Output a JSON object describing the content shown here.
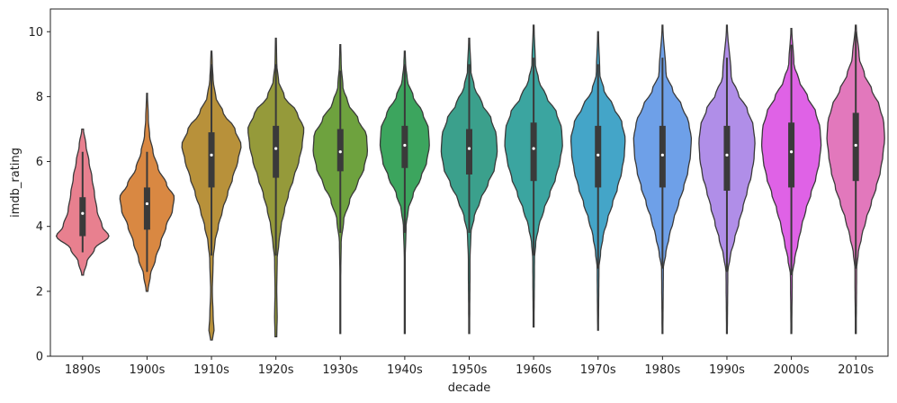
{
  "chart_data": {
    "type": "violin",
    "xlabel": "decade",
    "ylabel": "imdb_rating",
    "ylim": [
      0,
      10.7
    ],
    "yticks": [
      "0",
      "2",
      "4",
      "6",
      "8",
      "10"
    ],
    "grid": false,
    "legend": "none",
    "categories": [
      "1890s",
      "1900s",
      "1910s",
      "1920s",
      "1930s",
      "1940s",
      "1950s",
      "1960s",
      "1970s",
      "1980s",
      "1990s",
      "2000s",
      "2010s"
    ],
    "series": [
      {
        "category": "1890s",
        "color": "#e8808f",
        "min": 2.5,
        "max": 7.0,
        "q1": 3.7,
        "median": 4.4,
        "q3": 4.9,
        "whisker_low": 3.2,
        "whisker_high": 6.3,
        "density": [
          [
            2.5,
            0.02
          ],
          [
            2.9,
            0.1
          ],
          [
            3.3,
            0.28
          ],
          [
            3.7,
            0.62
          ],
          [
            4.0,
            0.46
          ],
          [
            4.5,
            0.34
          ],
          [
            5.0,
            0.28
          ],
          [
            5.5,
            0.22
          ],
          [
            6.0,
            0.15
          ],
          [
            6.5,
            0.08
          ],
          [
            7.0,
            0.02
          ]
        ]
      },
      {
        "category": "1900s",
        "color": "#d98842",
        "min": 2.0,
        "max": 8.1,
        "q1": 3.9,
        "median": 4.7,
        "q3": 5.2,
        "whisker_low": 2.6,
        "whisker_high": 6.3,
        "density": [
          [
            2.0,
            0.02
          ],
          [
            2.5,
            0.08
          ],
          [
            3.0,
            0.2
          ],
          [
            3.5,
            0.32
          ],
          [
            4.0,
            0.45
          ],
          [
            4.5,
            0.6
          ],
          [
            4.9,
            0.64
          ],
          [
            5.3,
            0.46
          ],
          [
            5.8,
            0.26
          ],
          [
            6.3,
            0.14
          ],
          [
            6.8,
            0.06
          ],
          [
            7.3,
            0.03
          ],
          [
            8.1,
            0.01
          ]
        ]
      },
      {
        "category": "1910s",
        "color": "#b8913a",
        "min": 0.5,
        "max": 9.4,
        "q1": 5.2,
        "median": 6.2,
        "q3": 6.9,
        "whisker_low": 3.1,
        "whisker_high": 9.0,
        "density": [
          [
            0.5,
            0.02
          ],
          [
            0.8,
            0.06
          ],
          [
            1.2,
            0.04
          ],
          [
            2.0,
            0.02
          ],
          [
            3.0,
            0.04
          ],
          [
            3.5,
            0.08
          ],
          [
            4.0,
            0.16
          ],
          [
            4.5,
            0.26
          ],
          [
            5.0,
            0.38
          ],
          [
            5.5,
            0.5
          ],
          [
            6.0,
            0.62
          ],
          [
            6.5,
            0.7
          ],
          [
            7.0,
            0.55
          ],
          [
            7.5,
            0.28
          ],
          [
            8.0,
            0.1
          ],
          [
            8.5,
            0.04
          ],
          [
            9.0,
            0.02
          ],
          [
            9.4,
            0.01
          ]
        ]
      },
      {
        "category": "1920s",
        "color": "#959a3a",
        "min": 0.6,
        "max": 9.8,
        "q1": 5.5,
        "median": 6.4,
        "q3": 7.1,
        "whisker_low": 3.1,
        "whisker_high": 9.0,
        "density": [
          [
            0.6,
            0.02
          ],
          [
            1.2,
            0.03
          ],
          [
            2.0,
            0.02
          ],
          [
            3.0,
            0.03
          ],
          [
            3.5,
            0.07
          ],
          [
            4.0,
            0.12
          ],
          [
            4.5,
            0.2
          ],
          [
            5.0,
            0.3
          ],
          [
            5.5,
            0.42
          ],
          [
            6.0,
            0.54
          ],
          [
            6.5,
            0.62
          ],
          [
            7.0,
            0.66
          ],
          [
            7.5,
            0.5
          ],
          [
            8.0,
            0.2
          ],
          [
            8.5,
            0.06
          ],
          [
            9.0,
            0.02
          ],
          [
            9.8,
            0.01
          ]
        ]
      },
      {
        "category": "1930s",
        "color": "#6ea23e",
        "min": 0.7,
        "max": 9.6,
        "q1": 5.7,
        "median": 6.3,
        "q3": 7.0,
        "whisker_low": 3.8,
        "whisker_high": 8.8,
        "density": [
          [
            0.7,
            0.01
          ],
          [
            2.5,
            0.01
          ],
          [
            3.5,
            0.02
          ],
          [
            4.2,
            0.08
          ],
          [
            4.8,
            0.22
          ],
          [
            5.3,
            0.4
          ],
          [
            5.8,
            0.56
          ],
          [
            6.3,
            0.64
          ],
          [
            6.8,
            0.62
          ],
          [
            7.3,
            0.42
          ],
          [
            7.8,
            0.18
          ],
          [
            8.3,
            0.06
          ],
          [
            9.0,
            0.02
          ],
          [
            9.6,
            0.01
          ]
        ]
      },
      {
        "category": "1940s",
        "color": "#3ca55e",
        "min": 0.7,
        "max": 9.4,
        "q1": 5.8,
        "median": 6.5,
        "q3": 7.1,
        "whisker_low": 3.8,
        "whisker_high": 9.0,
        "density": [
          [
            0.7,
            0.01
          ],
          [
            3.0,
            0.01
          ],
          [
            4.0,
            0.03
          ],
          [
            4.5,
            0.08
          ],
          [
            5.0,
            0.2
          ],
          [
            5.5,
            0.38
          ],
          [
            6.0,
            0.52
          ],
          [
            6.5,
            0.58
          ],
          [
            7.0,
            0.56
          ],
          [
            7.5,
            0.42
          ],
          [
            8.0,
            0.2
          ],
          [
            8.5,
            0.06
          ],
          [
            9.0,
            0.02
          ],
          [
            9.4,
            0.01
          ]
        ]
      },
      {
        "category": "1950s",
        "color": "#3ba08c",
        "min": 0.7,
        "max": 9.8,
        "q1": 5.6,
        "median": 6.4,
        "q3": 7.0,
        "whisker_low": 3.8,
        "whisker_high": 9.0,
        "density": [
          [
            0.7,
            0.01
          ],
          [
            3.0,
            0.02
          ],
          [
            3.8,
            0.04
          ],
          [
            4.3,
            0.12
          ],
          [
            4.8,
            0.26
          ],
          [
            5.3,
            0.44
          ],
          [
            5.8,
            0.6
          ],
          [
            6.3,
            0.66
          ],
          [
            6.8,
            0.64
          ],
          [
            7.3,
            0.52
          ],
          [
            7.8,
            0.3
          ],
          [
            8.3,
            0.12
          ],
          [
            8.8,
            0.04
          ],
          [
            9.8,
            0.01
          ]
        ]
      },
      {
        "category": "1960s",
        "color": "#3ba5a0",
        "min": 0.9,
        "max": 10.2,
        "q1": 5.4,
        "median": 6.4,
        "q3": 7.2,
        "whisker_low": 3.1,
        "whisker_high": 9.2,
        "density": [
          [
            0.9,
            0.01
          ],
          [
            3.0,
            0.02
          ],
          [
            3.5,
            0.05
          ],
          [
            4.0,
            0.12
          ],
          [
            4.5,
            0.24
          ],
          [
            5.0,
            0.38
          ],
          [
            5.5,
            0.52
          ],
          [
            6.0,
            0.62
          ],
          [
            6.5,
            0.68
          ],
          [
            7.0,
            0.66
          ],
          [
            7.5,
            0.54
          ],
          [
            8.0,
            0.3
          ],
          [
            8.5,
            0.12
          ],
          [
            9.0,
            0.04
          ],
          [
            10.2,
            0.01
          ]
        ]
      },
      {
        "category": "1970s",
        "color": "#44a5c8",
        "min": 0.8,
        "max": 10.0,
        "q1": 5.2,
        "median": 6.2,
        "q3": 7.1,
        "whisker_low": 2.7,
        "whisker_high": 9.0,
        "density": [
          [
            0.8,
            0.01
          ],
          [
            2.7,
            0.02
          ],
          [
            3.2,
            0.06
          ],
          [
            3.7,
            0.12
          ],
          [
            4.2,
            0.22
          ],
          [
            4.7,
            0.34
          ],
          [
            5.2,
            0.46
          ],
          [
            5.7,
            0.56
          ],
          [
            6.2,
            0.62
          ],
          [
            6.7,
            0.64
          ],
          [
            7.2,
            0.56
          ],
          [
            7.7,
            0.36
          ],
          [
            8.2,
            0.14
          ],
          [
            8.7,
            0.04
          ],
          [
            10.0,
            0.01
          ]
        ]
      },
      {
        "category": "1980s",
        "color": "#6ea0e8",
        "min": 0.7,
        "max": 10.2,
        "q1": 5.2,
        "median": 6.2,
        "q3": 7.1,
        "whisker_low": 2.7,
        "whisker_high": 9.2,
        "density": [
          [
            0.7,
            0.01
          ],
          [
            2.7,
            0.02
          ],
          [
            3.2,
            0.08
          ],
          [
            3.7,
            0.16
          ],
          [
            4.2,
            0.26
          ],
          [
            4.7,
            0.38
          ],
          [
            5.2,
            0.5
          ],
          [
            5.7,
            0.6
          ],
          [
            6.2,
            0.66
          ],
          [
            6.7,
            0.68
          ],
          [
            7.2,
            0.62
          ],
          [
            7.7,
            0.46
          ],
          [
            8.2,
            0.24
          ],
          [
            8.7,
            0.08
          ],
          [
            10.2,
            0.01
          ]
        ]
      },
      {
        "category": "1990s",
        "color": "#b08ee8",
        "min": 0.7,
        "max": 10.2,
        "q1": 5.1,
        "median": 6.2,
        "q3": 7.1,
        "whisker_low": 2.6,
        "whisker_high": 9.2,
        "density": [
          [
            0.7,
            0.01
          ],
          [
            2.6,
            0.02
          ],
          [
            3.1,
            0.08
          ],
          [
            3.6,
            0.18
          ],
          [
            4.1,
            0.28
          ],
          [
            4.6,
            0.38
          ],
          [
            5.1,
            0.48
          ],
          [
            5.6,
            0.58
          ],
          [
            6.1,
            0.64
          ],
          [
            6.6,
            0.66
          ],
          [
            7.1,
            0.62
          ],
          [
            7.6,
            0.48
          ],
          [
            8.1,
            0.26
          ],
          [
            8.6,
            0.1
          ],
          [
            10.2,
            0.01
          ]
        ]
      },
      {
        "category": "2000s",
        "color": "#df62e6",
        "min": 0.7,
        "max": 10.1,
        "q1": 5.2,
        "median": 6.3,
        "q3": 7.2,
        "whisker_low": 2.5,
        "whisker_high": 9.6,
        "density": [
          [
            0.7,
            0.01
          ],
          [
            2.5,
            0.02
          ],
          [
            3.0,
            0.08
          ],
          [
            3.5,
            0.16
          ],
          [
            4.0,
            0.24
          ],
          [
            4.5,
            0.34
          ],
          [
            5.0,
            0.46
          ],
          [
            5.5,
            0.58
          ],
          [
            6.0,
            0.66
          ],
          [
            6.5,
            0.7
          ],
          [
            7.0,
            0.68
          ],
          [
            7.5,
            0.58
          ],
          [
            8.0,
            0.38
          ],
          [
            8.5,
            0.18
          ],
          [
            9.0,
            0.06
          ],
          [
            10.1,
            0.01
          ]
        ]
      },
      {
        "category": "2010s",
        "color": "#e278bc",
        "min": 0.7,
        "max": 10.2,
        "q1": 5.4,
        "median": 6.5,
        "q3": 7.5,
        "whisker_low": 2.7,
        "whisker_high": 10.0,
        "density": [
          [
            0.7,
            0.01
          ],
          [
            2.7,
            0.02
          ],
          [
            3.2,
            0.06
          ],
          [
            3.7,
            0.14
          ],
          [
            4.2,
            0.24
          ],
          [
            4.7,
            0.36
          ],
          [
            5.2,
            0.48
          ],
          [
            5.7,
            0.58
          ],
          [
            6.2,
            0.64
          ],
          [
            6.7,
            0.68
          ],
          [
            7.2,
            0.66
          ],
          [
            7.7,
            0.56
          ],
          [
            8.2,
            0.38
          ],
          [
            8.7,
            0.2
          ],
          [
            9.2,
            0.08
          ],
          [
            10.2,
            0.01
          ]
        ]
      }
    ]
  }
}
